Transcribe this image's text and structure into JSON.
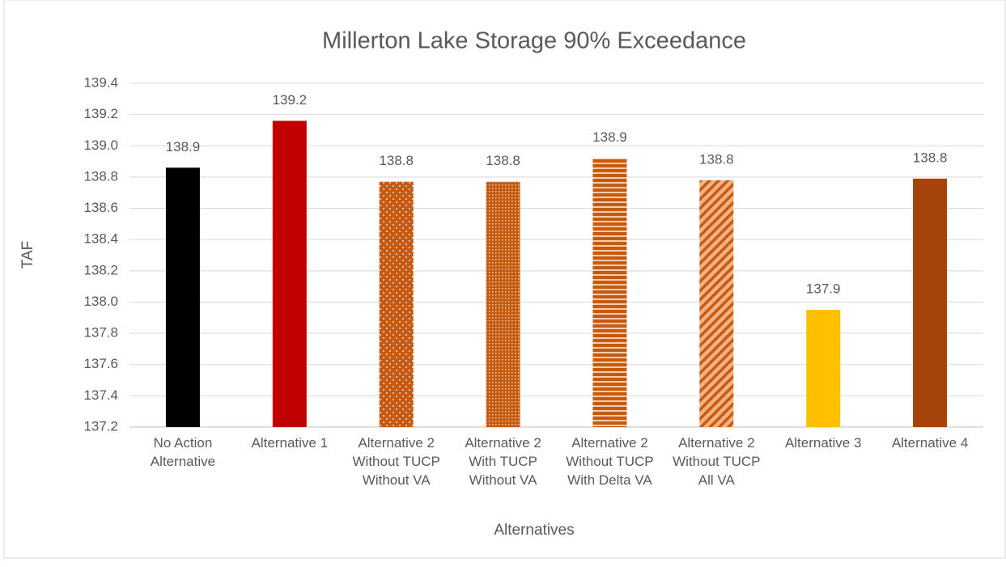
{
  "chart_data": {
    "type": "bar",
    "title": "Millerton Lake Storage 90% Exceedance",
    "x_label": "Alternatives",
    "y_label": "TAF",
    "categories": [
      "No Action Alternative",
      "Alternative 1",
      "Alternative 2 Without TUCP Without VA",
      "Alternative 2 With TUCP Without VA",
      "Alternative 2 Without TUCP With Delta VA",
      "Alternative 2 Without TUCP All VA",
      "Alternative 3",
      "Alternative 4"
    ],
    "values": [
      138.86,
      139.16,
      138.77,
      138.77,
      138.92,
      138.78,
      137.95,
      138.79
    ],
    "value_labels": [
      "138.9",
      "139.2",
      "138.8",
      "138.8",
      "138.9",
      "138.8",
      "137.9",
      "138.8"
    ],
    "colors": [
      "#000000",
      "#c00000",
      "#c55a11",
      "#c55a11",
      "#c55a11",
      "#f4b183",
      "#ffc000",
      "#a5430a"
    ],
    "patterns": [
      "solid",
      "solid",
      "dots",
      "grid",
      "horizontal",
      "diagonal",
      "solid",
      "solid"
    ],
    "ylim": [
      137.2,
      139.4
    ],
    "yticks": [
      {
        "value": 137.2,
        "label": "137.2"
      },
      {
        "value": 137.4,
        "label": "137.4"
      },
      {
        "value": 137.6,
        "label": "137.6"
      },
      {
        "value": 137.8,
        "label": "137.8"
      },
      {
        "value": 138.0,
        "label": "138.0"
      },
      {
        "value": 138.2,
        "label": "138.2"
      },
      {
        "value": 138.4,
        "label": "138.4"
      },
      {
        "value": 138.6,
        "label": "138.6"
      },
      {
        "value": 138.8,
        "label": "138.8"
      },
      {
        "value": 139.0,
        "label": "139.0"
      },
      {
        "value": 139.2,
        "label": "139.2"
      },
      {
        "value": 139.4,
        "label": "139.4"
      }
    ],
    "grid": true
  }
}
